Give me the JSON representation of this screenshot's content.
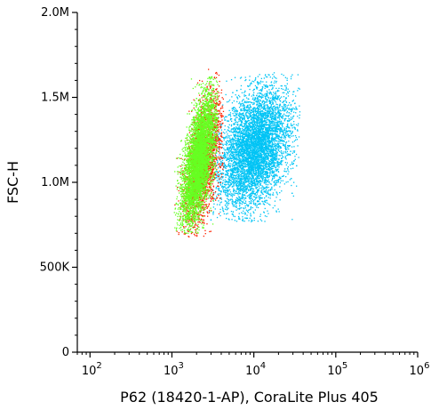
{
  "chart_data": {
    "type": "scatter",
    "title": "",
    "xlabel": "P62 (18420-1-AP), CoraLite Plus 405",
    "ylabel": "FSC-H",
    "x_scale": "log",
    "xlim": [
      70,
      1000000
    ],
    "ylim": [
      0,
      2000000
    ],
    "x_ticks": [
      {
        "value": 100,
        "base": "10",
        "exp": "2"
      },
      {
        "value": 1000,
        "base": "10",
        "exp": "3"
      },
      {
        "value": 10000,
        "base": "10",
        "exp": "4"
      },
      {
        "value": 100000,
        "base": "10",
        "exp": "5"
      },
      {
        "value": 1000000,
        "base": "10",
        "exp": "6"
      }
    ],
    "y_ticks": [
      {
        "value": 0,
        "label": "0"
      },
      {
        "value": 500000,
        "label": "500K"
      },
      {
        "value": 1000000,
        "label": "1.0M"
      },
      {
        "value": 1500000,
        "label": "1.5M"
      },
      {
        "value": 2000000,
        "label": "2.0M"
      }
    ],
    "grid": false,
    "legend": "none",
    "series": [
      {
        "color": "#00c4f5",
        "points": 6000,
        "x_center": 10000,
        "x_range": [
          2800,
          36000
        ],
        "y_center": 1200000,
        "y_range": [
          770000,
          1650000
        ]
      },
      {
        "color": "#ff2200",
        "points": 2200,
        "x_center": 2400,
        "x_range": [
          1050,
          4200
        ],
        "y_center": 1130000,
        "y_range": [
          680000,
          1670000
        ]
      },
      {
        "color": "#66ff22",
        "points": 5000,
        "x_center": 2100,
        "x_range": [
          1050,
          3600
        ],
        "y_center": 1130000,
        "y_range": [
          700000,
          1640000
        ]
      }
    ]
  }
}
